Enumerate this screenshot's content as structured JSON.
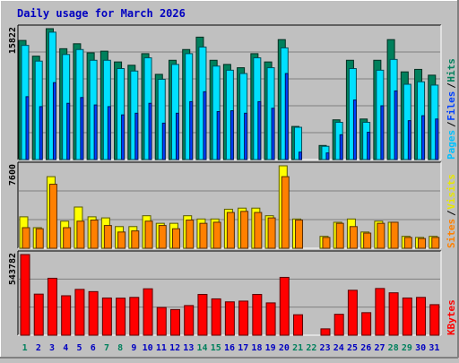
{
  "title": "Daily usage for March 2026",
  "colors": {
    "background": "#c0c0c0",
    "panel": "#c0c0c0",
    "title_text": "#0000c0",
    "hits": "#00805c",
    "files": "#00e0ff",
    "pages": "#0040ff",
    "visits": "#ffff00",
    "sites": "#ff8000",
    "kbytes": "#ff0000",
    "weekend_label": "#00805c",
    "weekday_label": "#0000c0",
    "grid": "#808080"
  },
  "chart_data": [
    {
      "type": "bar",
      "panel": "hits_files_pages",
      "categories": [
        "1",
        "2",
        "3",
        "4",
        "5",
        "6",
        "7",
        "8",
        "9",
        "10",
        "11",
        "12",
        "13",
        "14",
        "15",
        "16",
        "17",
        "18",
        "19",
        "20",
        "21",
        "22",
        "23",
        "24",
        "25",
        "26",
        "27",
        "28",
        "29",
        "30",
        "31"
      ],
      "ymax_label": "15822",
      "ylim": [
        0,
        15822
      ],
      "legend": [
        {
          "text": "Pages",
          "color": "#00c0ff"
        },
        {
          "text": "/",
          "color": "#000000"
        },
        {
          "text": "Files",
          "color": "#0040ff"
        },
        {
          "text": "/",
          "color": "#000000"
        },
        {
          "text": "Hits",
          "color": "#00805c"
        }
      ],
      "series": [
        {
          "name": "Hits",
          "values": [
            14400,
            12500,
            15822,
            13400,
            14000,
            12900,
            13100,
            11800,
            11400,
            12800,
            10300,
            12000,
            13300,
            14800,
            12000,
            11500,
            11100,
            12800,
            11800,
            14500,
            4000,
            0,
            1700,
            4800,
            12000,
            4900,
            12000,
            14500,
            10600,
            10900,
            10200
          ]
        },
        {
          "name": "Files",
          "values": [
            13800,
            11900,
            15400,
            12700,
            13300,
            12000,
            12000,
            11000,
            10700,
            12300,
            9700,
            11500,
            12800,
            13600,
            11300,
            10800,
            10400,
            12300,
            11100,
            13500,
            3900,
            0,
            1600,
            4500,
            11000,
            4500,
            10800,
            12100,
            9100,
            9400,
            9000
          ]
        },
        {
          "name": "Pages",
          "values": [
            7600,
            6400,
            9300,
            6800,
            7500,
            6600,
            6400,
            5400,
            5600,
            6800,
            4400,
            5600,
            7000,
            8200,
            5800,
            5900,
            5600,
            7000,
            6200,
            10400,
            900,
            0,
            800,
            3000,
            7200,
            3300,
            6500,
            8300,
            4700,
            5300,
            4900
          ]
        }
      ]
    },
    {
      "type": "bar",
      "panel": "visits_sites",
      "categories": [
        "1",
        "2",
        "3",
        "4",
        "5",
        "6",
        "7",
        "8",
        "9",
        "10",
        "11",
        "12",
        "13",
        "14",
        "15",
        "16",
        "17",
        "18",
        "19",
        "20",
        "21",
        "22",
        "23",
        "24",
        "25",
        "26",
        "27",
        "28",
        "29",
        "30",
        "31"
      ],
      "ymax_label": "7600",
      "ylim": [
        0,
        7600
      ],
      "legend": [
        {
          "text": "Sites",
          "color": "#ff8000"
        },
        {
          "text": "/",
          "color": "#000000"
        },
        {
          "text": "Visits",
          "color": "#e8e800"
        }
      ],
      "series": [
        {
          "name": "Visits",
          "values": [
            2900,
            1900,
            6600,
            2500,
            3800,
            2900,
            2800,
            2000,
            2000,
            3000,
            2300,
            2300,
            3000,
            2700,
            2700,
            3600,
            3700,
            3700,
            3000,
            7600,
            2700,
            0,
            1100,
            2400,
            2700,
            1500,
            2500,
            2400,
            1100,
            1000,
            1100
          ]
        },
        {
          "name": "Sites",
          "values": [
            1900,
            1800,
            5900,
            1900,
            2500,
            2600,
            2100,
            1500,
            1600,
            2500,
            2100,
            1800,
            2600,
            2300,
            2400,
            3300,
            3400,
            3300,
            2800,
            6600,
            2600,
            0,
            1000,
            2300,
            2000,
            1400,
            2300,
            2400,
            1000,
            900,
            1000
          ]
        }
      ]
    },
    {
      "type": "bar",
      "panel": "kbytes",
      "categories": [
        "1",
        "2",
        "3",
        "4",
        "5",
        "6",
        "7",
        "8",
        "9",
        "10",
        "11",
        "12",
        "13",
        "14",
        "15",
        "16",
        "17",
        "18",
        "19",
        "20",
        "21",
        "22",
        "23",
        "24",
        "25",
        "26",
        "27",
        "28",
        "29",
        "30",
        "31"
      ],
      "ymax_label": "543782",
      "ylim": [
        0,
        543782
      ],
      "legend": [
        {
          "text": "KBytes",
          "color": "#ff0000"
        }
      ],
      "series": [
        {
          "name": "KBytes",
          "values": [
            543782,
            277000,
            384000,
            266000,
            309000,
            294000,
            251000,
            250000,
            255000,
            313000,
            187000,
            173000,
            200000,
            275000,
            245000,
            225000,
            230000,
            275000,
            218000,
            390000,
            138000,
            0,
            43000,
            141000,
            303000,
            152000,
            315000,
            286000,
            251000,
            255000,
            206000
          ]
        }
      ]
    }
  ],
  "weekend_days": [
    "1",
    "7",
    "8",
    "14",
    "15",
    "21",
    "22",
    "28",
    "29"
  ]
}
